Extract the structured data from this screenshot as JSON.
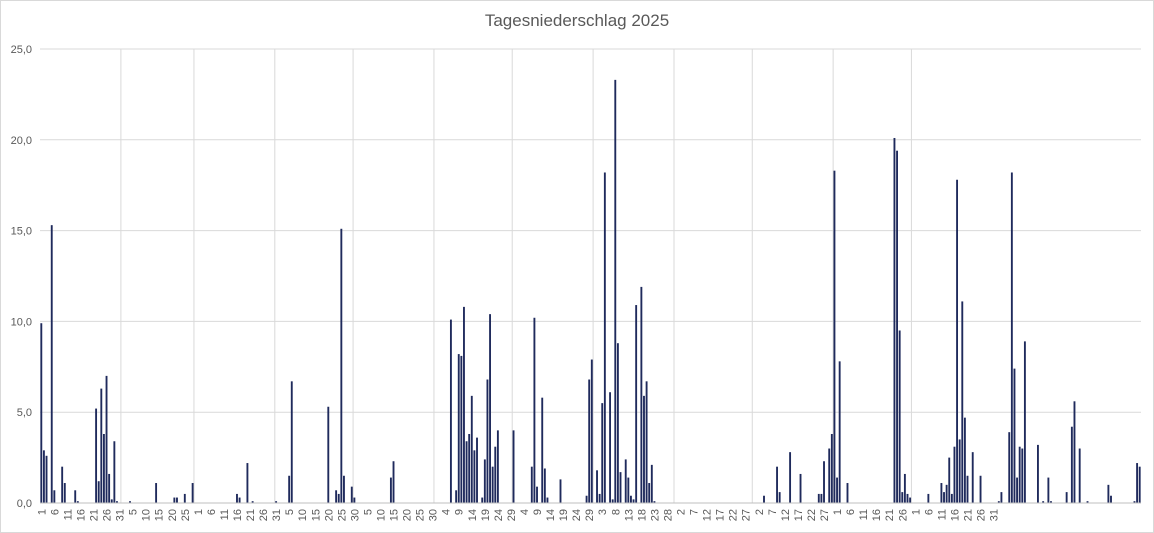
{
  "chart_data": {
    "type": "bar",
    "title": "Tagesniederschlag 2025",
    "xlabel": "",
    "ylabel": "",
    "ylim": [
      0,
      25
    ],
    "y_ticks": [
      "0,0",
      "5,0",
      "10,0",
      "15,0",
      "20,0",
      "25,0"
    ],
    "grid": true,
    "bar_color": "#1f2a5c",
    "grid_color": "#d9d9d9",
    "x_tick_labels": [
      "1",
      "6",
      "11",
      "16",
      "21",
      "26",
      "31",
      "5",
      "10",
      "15",
      "20",
      "25",
      "1",
      "6",
      "11",
      "16",
      "21",
      "26",
      "31",
      "5",
      "10",
      "15",
      "20",
      "25",
      "30",
      "5",
      "10",
      "15",
      "20",
      "25",
      "30",
      "4",
      "9",
      "14",
      "19",
      "24",
      "29",
      "4",
      "9",
      "14",
      "19",
      "24",
      "29",
      "3",
      "8",
      "13",
      "18",
      "23",
      "28",
      "2",
      "7",
      "12",
      "17",
      "22",
      "27",
      "2",
      "7",
      "12",
      "17",
      "22",
      "27",
      "1",
      "6",
      "11",
      "16",
      "21",
      "26",
      "1",
      "6",
      "11",
      "16",
      "21",
      "26",
      "31"
    ],
    "series": [
      {
        "values": [
          9.9,
          2.9,
          2.6,
          0,
          15.3,
          0.7,
          0,
          0,
          2.0,
          1.1,
          0,
          0,
          0,
          0.7,
          0.1,
          0,
          0,
          0,
          0,
          0,
          0,
          5.2,
          1.2,
          6.3,
          3.8,
          7.0,
          1.6,
          0.2,
          3.4,
          0.1,
          0,
          0,
          0,
          0,
          0.1,
          0,
          0,
          0,
          0,
          0,
          0,
          0,
          0,
          0,
          1.1,
          0,
          0,
          0,
          0,
          0,
          0,
          0.3,
          0.3,
          0,
          0,
          0.5,
          0,
          0,
          1.1,
          0,
          0,
          0,
          0,
          0,
          0,
          0,
          0,
          0,
          0,
          0,
          0,
          0,
          0,
          0,
          0,
          0.5,
          0.3,
          0,
          0,
          2.2,
          0,
          0.1,
          0,
          0,
          0,
          0,
          0,
          0,
          0,
          0,
          0.1,
          0,
          0,
          0,
          0,
          1.5,
          6.7,
          0,
          0,
          0,
          0,
          0,
          0,
          0,
          0,
          0,
          0,
          0,
          0,
          0,
          5.3,
          0,
          0,
          0.7,
          0.5,
          15.1,
          1.5,
          0,
          0,
          0.9,
          0.3,
          0,
          0,
          0,
          0,
          0,
          0,
          0,
          0,
          0,
          0,
          0,
          0,
          0,
          1.4,
          2.3,
          0,
          0,
          0,
          0,
          0,
          0,
          0,
          0,
          0,
          0,
          0,
          0,
          0,
          0,
          0,
          0,
          0,
          0,
          0,
          0,
          0,
          10.1,
          0,
          0.7,
          8.2,
          8.1,
          10.8,
          3.4,
          3.8,
          5.9,
          2.9,
          3.6,
          0,
          0.3,
          2.4,
          6.8,
          10.4,
          2.0,
          3.1,
          4.0,
          0,
          0,
          0,
          0,
          0,
          4.0,
          0,
          0,
          0,
          0,
          0,
          0,
          2.0,
          10.2,
          0.9,
          0,
          5.8,
          1.9,
          0.3,
          0,
          0,
          0,
          0,
          1.3,
          0,
          0,
          0,
          0,
          0,
          0,
          0,
          0,
          0,
          0.4,
          6.8,
          7.9,
          0,
          1.8,
          0.5,
          5.5,
          18.2,
          0,
          6.1,
          0.2,
          23.3,
          8.8,
          1.7,
          0,
          2.4,
          1.4,
          0.4,
          0.2,
          10.9,
          0,
          11.9,
          5.9,
          6.7,
          1.1,
          2.1,
          0.1,
          0,
          0,
          0,
          0,
          0,
          0,
          0,
          0,
          0,
          0,
          0,
          0,
          0,
          0,
          0,
          0,
          0,
          0,
          0,
          0,
          0,
          0,
          0,
          0,
          0,
          0,
          0,
          0,
          0,
          0,
          0,
          0,
          0,
          0,
          0,
          0,
          0,
          0,
          0,
          0,
          0,
          0.4,
          0,
          0,
          0,
          0,
          2.0,
          0.6,
          0,
          0,
          0,
          2.8,
          0,
          0,
          0,
          1.6,
          0,
          0,
          0,
          0,
          0,
          0,
          0.5,
          0.5,
          2.3,
          0,
          3.0,
          3.8,
          18.3,
          1.4,
          7.8,
          0,
          0,
          1.1,
          0,
          0,
          0,
          0,
          0,
          0,
          0,
          0,
          0,
          0,
          0,
          0,
          0,
          0,
          0,
          0,
          0,
          20.1,
          19.4,
          9.5,
          0.6,
          1.6,
          0.5,
          0.3,
          0,
          0,
          0,
          0,
          0,
          0,
          0.5,
          0,
          0,
          0,
          0,
          1.1,
          0.6,
          1.0,
          2.5,
          0.5,
          3.1,
          17.8,
          3.5,
          11.1,
          4.7,
          1.5,
          0,
          2.8,
          0,
          0,
          1.5,
          0,
          0,
          0,
          0,
          0,
          0,
          0.1,
          0.6,
          0,
          0,
          3.9,
          18.2,
          7.4,
          1.4,
          3.1,
          3.0,
          8.9,
          0,
          0,
          0,
          0,
          3.2,
          0,
          0.1,
          0,
          1.4,
          0.1,
          0,
          0,
          0,
          0,
          0,
          0.6,
          0,
          4.2,
          5.6,
          0,
          3.0,
          0,
          0,
          0.1,
          0,
          0,
          0,
          0,
          0,
          0,
          0,
          1.0,
          0.4,
          0,
          0,
          0,
          0,
          0,
          0,
          0,
          0,
          0.1,
          2.2,
          2.0
        ]
      }
    ]
  }
}
